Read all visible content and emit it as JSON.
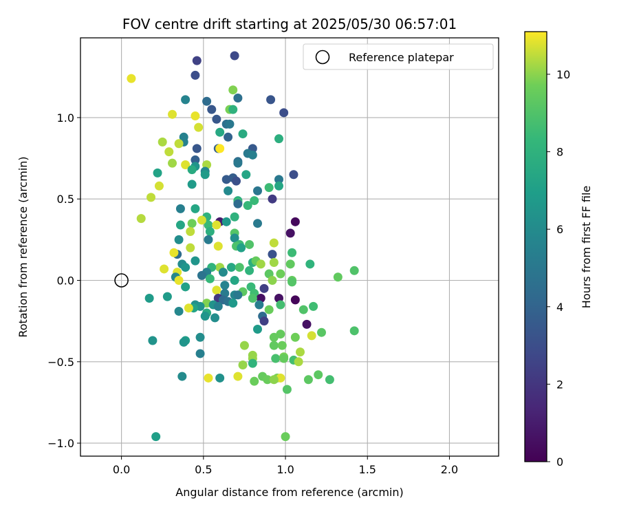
{
  "chart_data": {
    "type": "scatter",
    "title": "FOV centre drift starting at 2025/05/30 06:57:01",
    "xlabel": "Angular distance from reference (arcmin)",
    "ylabel": "Rotation from reference (arcmin)",
    "xlim": [
      -0.25,
      2.3
    ],
    "ylim": [
      -1.08,
      1.49
    ],
    "xticks": [
      0.0,
      0.5,
      1.0,
      1.5,
      2.0
    ],
    "xtick_labels": [
      "0.0",
      "0.5",
      "1.0",
      "1.5",
      "2.0"
    ],
    "yticks": [
      -1.0,
      -0.5,
      0.0,
      0.5,
      1.0
    ],
    "ytick_labels": [
      "−1.0",
      "−0.5",
      "0.0",
      "0.5",
      "1.0"
    ],
    "grid": true,
    "legend": {
      "position": "top-right",
      "entries": [
        "Reference platepar"
      ]
    },
    "colorbar": {
      "label": "Hours from first FF file",
      "colormap": "viridis",
      "range": [
        0,
        11.1
      ],
      "ticks": [
        0,
        2,
        4,
        6,
        8,
        10
      ],
      "tick_labels": [
        "0",
        "2",
        "4",
        "6",
        "8",
        "10"
      ]
    },
    "reference_point": {
      "x": 0.0,
      "y": 0.0
    },
    "points": [
      [
        0.06,
        1.24,
        10.9
      ],
      [
        0.46,
        1.35,
        2.5
      ],
      [
        0.69,
        1.38,
        2.8
      ],
      [
        0.45,
        1.26,
        3.0
      ],
      [
        0.68,
        1.17,
        9.9
      ],
      [
        0.91,
        1.11,
        3.3
      ],
      [
        0.71,
        1.12,
        4.6
      ],
      [
        0.99,
        1.03,
        3.0
      ],
      [
        0.39,
        1.11,
        5.6
      ],
      [
        0.52,
        1.1,
        4.4
      ],
      [
        0.55,
        1.05,
        3.4
      ],
      [
        0.66,
        1.05,
        9.8
      ],
      [
        0.68,
        1.05,
        8.0
      ],
      [
        0.31,
        1.02,
        10.8
      ],
      [
        0.45,
        1.01,
        10.9
      ],
      [
        0.58,
        0.99,
        3.4
      ],
      [
        0.64,
        0.96,
        4.6
      ],
      [
        0.66,
        0.96,
        5.0
      ],
      [
        0.47,
        0.94,
        10.7
      ],
      [
        0.6,
        0.91,
        7.5
      ],
      [
        0.74,
        0.9,
        7.6
      ],
      [
        0.96,
        0.87,
        7.8
      ],
      [
        0.38,
        0.88,
        5.5
      ],
      [
        0.65,
        0.88,
        4.0
      ],
      [
        0.38,
        0.85,
        5.5
      ],
      [
        0.25,
        0.85,
        10.3
      ],
      [
        0.35,
        0.84,
        10.5
      ],
      [
        0.8,
        0.81,
        3.5
      ],
      [
        0.46,
        0.81,
        3.4
      ],
      [
        0.59,
        0.81,
        3.8
      ],
      [
        0.6,
        0.81,
        11.1
      ],
      [
        0.29,
        0.79,
        10.5
      ],
      [
        0.77,
        0.78,
        5.1
      ],
      [
        0.8,
        0.77,
        5.4
      ],
      [
        0.45,
        0.74,
        3.8
      ],
      [
        0.71,
        0.73,
        4.5
      ],
      [
        0.52,
        0.71,
        10.3
      ],
      [
        0.71,
        0.72,
        5.0
      ],
      [
        0.31,
        0.72,
        10.2
      ],
      [
        0.39,
        0.71,
        10.8
      ],
      [
        0.45,
        0.7,
        6.5
      ],
      [
        0.43,
        0.68,
        7.6
      ],
      [
        0.22,
        0.66,
        7.2
      ],
      [
        0.51,
        0.67,
        5.8
      ],
      [
        0.51,
        0.65,
        6.8
      ],
      [
        0.76,
        0.65,
        7.3
      ],
      [
        1.05,
        0.65,
        3.0
      ],
      [
        0.68,
        0.63,
        3.7
      ],
      [
        0.64,
        0.62,
        3.6
      ],
      [
        0.96,
        0.62,
        5.0
      ],
      [
        0.7,
        0.61,
        3.1
      ],
      [
        0.43,
        0.59,
        6.8
      ],
      [
        0.23,
        0.58,
        10.7
      ],
      [
        0.96,
        0.58,
        7.4
      ],
      [
        0.9,
        0.57,
        8.5
      ],
      [
        0.65,
        0.55,
        5.9
      ],
      [
        0.83,
        0.55,
        4.9
      ],
      [
        0.18,
        0.51,
        10.5
      ],
      [
        0.92,
        0.5,
        2.2
      ],
      [
        0.71,
        0.49,
        7.8
      ],
      [
        0.81,
        0.49,
        8.4
      ],
      [
        0.71,
        0.48,
        8.5
      ],
      [
        0.71,
        0.47,
        4.4
      ],
      [
        0.77,
        0.46,
        8.3
      ],
      [
        0.36,
        0.44,
        5.4
      ],
      [
        0.45,
        0.44,
        7.4
      ],
      [
        0.12,
        0.38,
        10.4
      ],
      [
        0.52,
        0.39,
        8.0
      ],
      [
        0.69,
        0.39,
        8.0
      ],
      [
        0.6,
        0.36,
        1.0
      ],
      [
        0.64,
        0.36,
        6.7
      ],
      [
        0.83,
        0.35,
        5.1
      ],
      [
        1.06,
        0.36,
        0.3
      ],
      [
        0.36,
        0.34,
        7.4
      ],
      [
        0.53,
        0.34,
        8.4
      ],
      [
        0.58,
        0.34,
        10.8
      ],
      [
        0.43,
        0.35,
        9.7
      ],
      [
        0.49,
        0.37,
        10.7
      ],
      [
        1.03,
        0.29,
        0.6
      ],
      [
        0.42,
        0.3,
        10.5
      ],
      [
        0.69,
        0.29,
        9.1
      ],
      [
        0.54,
        0.3,
        7.8
      ],
      [
        0.69,
        0.26,
        6.2
      ],
      [
        0.72,
        0.22,
        8.5
      ],
      [
        0.78,
        0.22,
        9.0
      ],
      [
        0.93,
        0.23,
        10.5
      ],
      [
        0.35,
        0.25,
        6.1
      ],
      [
        0.53,
        0.25,
        5.2
      ],
      [
        0.7,
        0.21,
        8.9
      ],
      [
        0.73,
        0.2,
        7.1
      ],
      [
        0.59,
        0.21,
        10.8
      ],
      [
        0.42,
        0.2,
        10.5
      ],
      [
        1.04,
        0.17,
        8.5
      ],
      [
        0.34,
        0.16,
        4.4
      ],
      [
        0.92,
        0.16,
        3.2
      ],
      [
        0.32,
        0.17,
        10.9
      ],
      [
        0.8,
        0.11,
        7.8
      ],
      [
        0.82,
        0.12,
        9.5
      ],
      [
        0.93,
        0.11,
        10.2
      ],
      [
        0.45,
        0.12,
        6.5
      ],
      [
        0.37,
        0.1,
        6.0
      ],
      [
        0.6,
        0.08,
        10.2
      ],
      [
        0.85,
        0.1,
        10.2
      ],
      [
        1.03,
        0.1,
        9.4
      ],
      [
        1.15,
        0.1,
        8.1
      ],
      [
        0.26,
        0.07,
        10.8
      ],
      [
        0.39,
        0.08,
        6.5
      ],
      [
        0.55,
        0.08,
        8.1
      ],
      [
        0.67,
        0.08,
        7.5
      ],
      [
        0.72,
        0.08,
        8.9
      ],
      [
        0.78,
        0.06,
        8.1
      ],
      [
        0.34,
        0.05,
        10.8
      ],
      [
        0.52,
        0.05,
        5.4
      ],
      [
        0.62,
        0.05,
        6.0
      ],
      [
        0.49,
        0.03,
        4.8
      ],
      [
        0.9,
        0.04,
        9.3
      ],
      [
        0.97,
        0.04,
        9.7
      ],
      [
        1.32,
        0.02,
        9.4
      ],
      [
        1.42,
        0.06,
        9.0
      ],
      [
        0.33,
        0.02,
        5.8
      ],
      [
        0.35,
        0.0,
        10.9
      ],
      [
        0.54,
        0.01,
        8.3
      ],
      [
        0.69,
        0.0,
        7.4
      ],
      [
        0.92,
        0.0,
        10.0
      ],
      [
        1.04,
        0.0,
        9.5
      ],
      [
        1.04,
        -0.01,
        9.1
      ],
      [
        0.63,
        -0.03,
        5.6
      ],
      [
        0.39,
        -0.04,
        7.1
      ],
      [
        0.79,
        -0.04,
        8.4
      ],
      [
        0.58,
        -0.06,
        10.8
      ],
      [
        0.74,
        -0.07,
        9.3
      ],
      [
        0.87,
        -0.05,
        2.4
      ],
      [
        0.63,
        -0.08,
        5.2
      ],
      [
        0.69,
        -0.09,
        5.7
      ],
      [
        0.71,
        -0.09,
        5.0
      ],
      [
        0.81,
        -0.08,
        8.6
      ],
      [
        0.59,
        -0.11,
        2.0
      ],
      [
        0.85,
        -0.11,
        0.5
      ],
      [
        0.96,
        -0.11,
        0.6
      ],
      [
        0.17,
        -0.11,
        6.8
      ],
      [
        0.28,
        -0.1,
        6.8
      ],
      [
        0.62,
        -0.12,
        4.3
      ],
      [
        1.06,
        -0.12,
        0.2
      ],
      [
        0.65,
        -0.13,
        4.7
      ],
      [
        0.8,
        -0.11,
        8.9
      ],
      [
        0.52,
        -0.14,
        9.9
      ],
      [
        0.68,
        -0.14,
        6.7
      ],
      [
        0.84,
        -0.15,
        5.3
      ],
      [
        0.97,
        -0.15,
        8.7
      ],
      [
        0.56,
        -0.15,
        6.4
      ],
      [
        0.45,
        -0.15,
        6.2
      ],
      [
        0.48,
        -0.16,
        6.4
      ],
      [
        0.59,
        -0.16,
        5.4
      ],
      [
        0.44,
        -0.17,
        7.2
      ],
      [
        0.41,
        -0.17,
        10.8
      ],
      [
        1.17,
        -0.16,
        8.6
      ],
      [
        1.11,
        -0.18,
        9.0
      ],
      [
        0.35,
        -0.19,
        5.8
      ],
      [
        0.9,
        -0.18,
        9.6
      ],
      [
        0.52,
        -0.2,
        7.6
      ],
      [
        0.51,
        -0.22,
        6.5
      ],
      [
        0.57,
        -0.23,
        6.1
      ],
      [
        0.86,
        -0.22,
        4.4
      ],
      [
        0.87,
        -0.25,
        2.4
      ],
      [
        1.13,
        -0.27,
        0.6
      ],
      [
        0.83,
        -0.3,
        6.8
      ],
      [
        1.22,
        -0.32,
        9.2
      ],
      [
        1.42,
        -0.31,
        8.9
      ],
      [
        1.16,
        -0.34,
        10.7
      ],
      [
        0.93,
        -0.35,
        9.5
      ],
      [
        1.06,
        -0.35,
        9.7
      ],
      [
        0.97,
        -0.33,
        9.5
      ],
      [
        0.48,
        -0.35,
        6.1
      ],
      [
        0.19,
        -0.37,
        6.4
      ],
      [
        0.39,
        -0.37,
        6.9
      ],
      [
        0.38,
        -0.38,
        6.5
      ],
      [
        0.75,
        -0.4,
        10.1
      ],
      [
        0.93,
        -0.4,
        9.4
      ],
      [
        0.98,
        -0.4,
        9.6
      ],
      [
        0.48,
        -0.45,
        5.4
      ],
      [
        0.8,
        -0.46,
        10.1
      ],
      [
        0.8,
        -0.48,
        10.1
      ],
      [
        0.99,
        -0.47,
        9.8
      ],
      [
        0.94,
        -0.48,
        8.8
      ],
      [
        0.99,
        -0.48,
        9.5
      ],
      [
        1.05,
        -0.49,
        8.7
      ],
      [
        1.08,
        -0.5,
        10.3
      ],
      [
        0.8,
        -0.51,
        8.1
      ],
      [
        0.74,
        -0.52,
        10.1
      ],
      [
        1.09,
        -0.44,
        10.3
      ],
      [
        0.37,
        -0.59,
        6.0
      ],
      [
        0.53,
        -0.6,
        10.9
      ],
      [
        0.6,
        -0.6,
        6.3
      ],
      [
        0.71,
        -0.59,
        10.8
      ],
      [
        0.86,
        -0.59,
        9.5
      ],
      [
        0.89,
        -0.61,
        9.6
      ],
      [
        0.81,
        -0.62,
        9.6
      ],
      [
        0.95,
        -0.6,
        9.8
      ],
      [
        0.97,
        -0.6,
        10.8
      ],
      [
        0.93,
        -0.61,
        10.0
      ],
      [
        1.01,
        -0.67,
        9.1
      ],
      [
        1.14,
        -0.61,
        9.3
      ],
      [
        1.2,
        -0.58,
        9.3
      ],
      [
        1.27,
        -0.61,
        8.7
      ],
      [
        0.21,
        -0.96,
        7.0
      ],
      [
        1.0,
        -0.96,
        9.6
      ]
    ]
  }
}
